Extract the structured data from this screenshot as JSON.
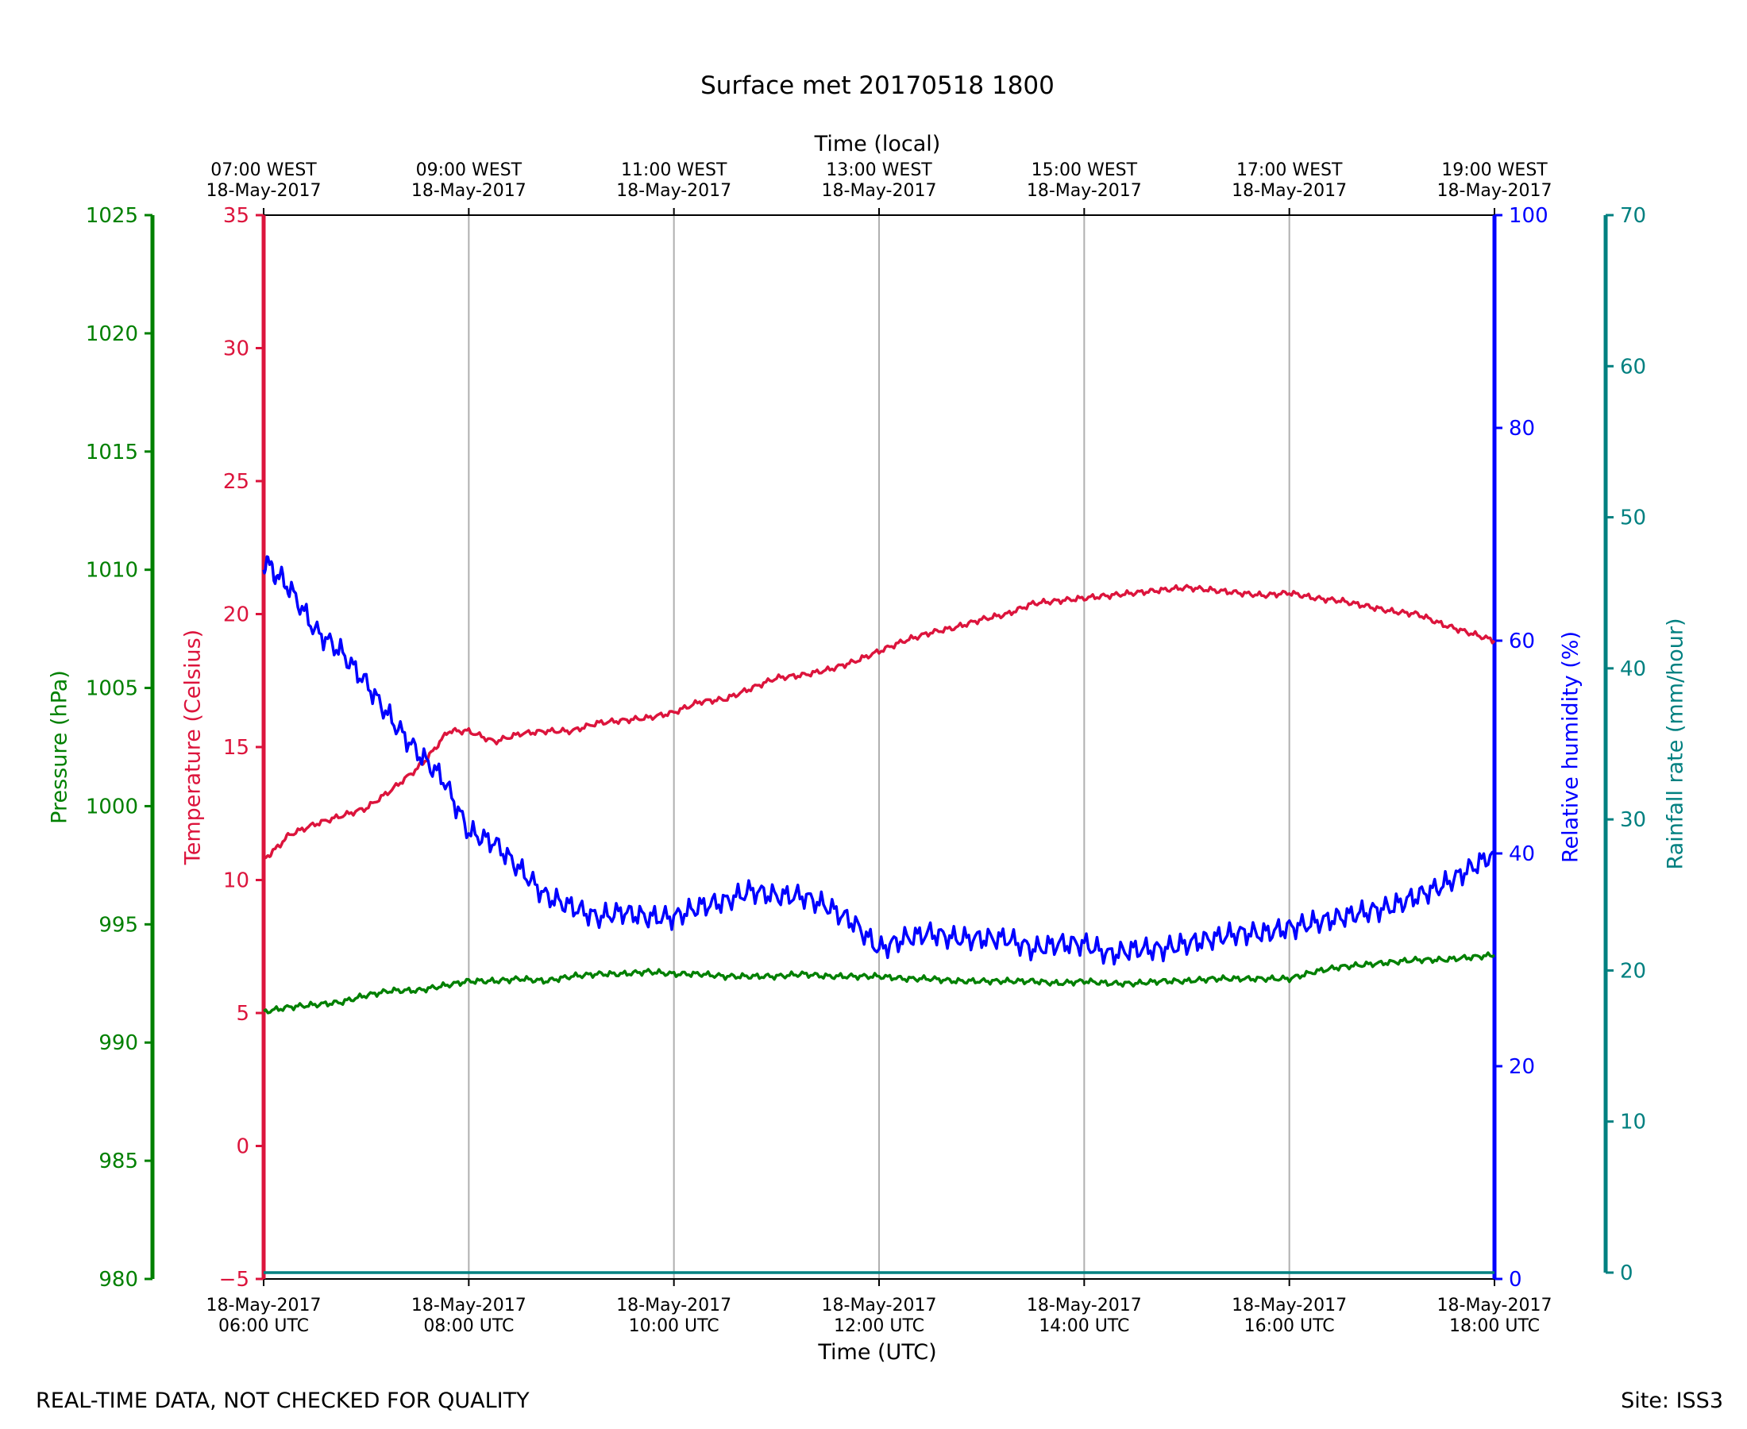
{
  "footer": {
    "left_note": "REAL-TIME DATA, NOT CHECKED FOR QUALITY",
    "right_note": "Site: ISS3"
  },
  "chart_data": {
    "type": "line",
    "title": "Surface met 20170518 1800",
    "xlabel_bottom": "Time (UTC)",
    "xlabel_top": "Time (local)",
    "x_range_hours_utc": [
      6,
      18
    ],
    "x_ticks_bottom": [
      {
        "hour": 6,
        "date": "18-May-2017",
        "time": "06:00 UTC"
      },
      {
        "hour": 8,
        "date": "18-May-2017",
        "time": "08:00 UTC"
      },
      {
        "hour": 10,
        "date": "18-May-2017",
        "time": "10:00 UTC"
      },
      {
        "hour": 12,
        "date": "18-May-2017",
        "time": "12:00 UTC"
      },
      {
        "hour": 14,
        "date": "18-May-2017",
        "time": "14:00 UTC"
      },
      {
        "hour": 16,
        "date": "18-May-2017",
        "time": "16:00 UTC"
      },
      {
        "hour": 18,
        "date": "18-May-2017",
        "time": "18:00 UTC"
      }
    ],
    "x_ticks_top": [
      {
        "hour": 6,
        "time": "07:00 WEST",
        "date": "18-May-2017"
      },
      {
        "hour": 8,
        "time": "09:00 WEST",
        "date": "18-May-2017"
      },
      {
        "hour": 10,
        "time": "11:00 WEST",
        "date": "18-May-2017"
      },
      {
        "hour": 12,
        "time": "13:00 WEST",
        "date": "18-May-2017"
      },
      {
        "hour": 14,
        "time": "15:00 WEST",
        "date": "18-May-2017"
      },
      {
        "hour": 16,
        "time": "17:00 WEST",
        "date": "18-May-2017"
      },
      {
        "hour": 18,
        "time": "19:00 WEST",
        "date": "18-May-2017"
      }
    ],
    "grid": "vertical",
    "axes": {
      "pressure": {
        "label": "Pressure (hPa)",
        "range": [
          980,
          1025
        ],
        "ticks": [
          980,
          985,
          990,
          995,
          1000,
          1005,
          1010,
          1015,
          1020,
          1025
        ],
        "color": "#008000"
      },
      "temperature": {
        "label": "Temperature (Celsius)",
        "range": [
          -5,
          35
        ],
        "ticks": [
          -5,
          0,
          5,
          10,
          15,
          20,
          25,
          30,
          35
        ],
        "tick_labels": [
          "−5",
          "0",
          "5",
          "10",
          "15",
          "20",
          "25",
          "30",
          "35"
        ],
        "color": "#dc143c"
      },
      "humidity": {
        "label": "Relative humidity (%)",
        "range": [
          0,
          100
        ],
        "ticks": [
          0,
          20,
          40,
          60,
          80,
          100
        ],
        "color": "#0000ff"
      },
      "rainfall": {
        "label": "Rainfall rate (mm/hour)",
        "range": [
          0,
          70
        ],
        "ticks": [
          0,
          10,
          20,
          30,
          40,
          50,
          60,
          70
        ],
        "color": "#008080"
      }
    },
    "series": [
      {
        "name": "Temperature",
        "axis": "temperature",
        "color": "#dc143c",
        "x": [
          6.0,
          6.1,
          6.25,
          6.5,
          6.75,
          7.0,
          7.25,
          7.5,
          7.6,
          7.8,
          8.0,
          8.25,
          8.5,
          8.75,
          9.0,
          9.25,
          9.5,
          9.75,
          10.0,
          10.25,
          10.5,
          10.75,
          11.0,
          11.25,
          11.5,
          11.75,
          12.0,
          12.25,
          12.5,
          12.75,
          13.0,
          13.25,
          13.5,
          13.75,
          14.0,
          14.25,
          14.5,
          14.75,
          15.0,
          15.25,
          15.5,
          15.75,
          16.0,
          16.25,
          16.5,
          16.75,
          17.0,
          17.25,
          17.5,
          17.75,
          18.0
        ],
        "values": [
          10.8,
          11.1,
          11.7,
          12.1,
          12.4,
          12.7,
          13.4,
          14.2,
          14.6,
          15.6,
          15.6,
          15.2,
          15.5,
          15.6,
          15.6,
          15.9,
          16.0,
          16.1,
          16.3,
          16.7,
          16.8,
          17.2,
          17.6,
          17.7,
          17.9,
          18.2,
          18.6,
          19.0,
          19.3,
          19.5,
          19.8,
          20.0,
          20.4,
          20.5,
          20.6,
          20.7,
          20.8,
          20.9,
          21.0,
          20.9,
          20.8,
          20.7,
          20.8,
          20.6,
          20.5,
          20.3,
          20.1,
          20.0,
          19.6,
          19.3,
          19.0
        ]
      },
      {
        "name": "Relative humidity",
        "axis": "humidity",
        "color": "#0000ff",
        "x": [
          6.0,
          6.1,
          6.25,
          6.5,
          6.75,
          7.0,
          7.25,
          7.5,
          7.75,
          8.0,
          8.25,
          8.5,
          8.75,
          9.0,
          9.25,
          9.5,
          9.75,
          10.0,
          10.25,
          10.5,
          10.75,
          11.0,
          11.25,
          11.5,
          11.75,
          12.0,
          12.25,
          12.5,
          12.75,
          13.0,
          13.25,
          13.5,
          13.75,
          14.0,
          14.25,
          14.5,
          14.75,
          15.0,
          15.25,
          15.5,
          15.75,
          16.0,
          16.25,
          16.5,
          16.75,
          17.0,
          17.25,
          17.5,
          17.75,
          18.0
        ],
        "values": [
          67.5,
          66.5,
          65.0,
          61.0,
          59.0,
          56.0,
          52.5,
          49.5,
          47.0,
          42.0,
          41.0,
          38.5,
          36.0,
          35.0,
          34.0,
          34.5,
          34.0,
          34.0,
          35.0,
          35.5,
          36.5,
          36.0,
          36.0,
          35.0,
          33.5,
          31.0,
          32.0,
          32.5,
          32.0,
          32.0,
          32.0,
          31.0,
          31.5,
          31.5,
          30.5,
          31.0,
          31.0,
          31.5,
          32.0,
          32.5,
          32.5,
          33.0,
          33.5,
          34.0,
          34.5,
          35.0,
          36.0,
          37.0,
          38.5,
          40.0
        ]
      },
      {
        "name": "Pressure",
        "axis": "pressure",
        "color": "#008000",
        "x": [
          6.0,
          6.25,
          6.5,
          6.75,
          7.0,
          7.25,
          7.5,
          7.75,
          8.0,
          8.25,
          8.5,
          8.75,
          9.0,
          9.25,
          9.5,
          9.75,
          10.0,
          10.25,
          10.5,
          10.75,
          11.0,
          11.25,
          11.5,
          11.75,
          12.0,
          12.25,
          12.5,
          12.75,
          13.0,
          13.25,
          13.5,
          13.75,
          14.0,
          14.25,
          14.5,
          14.75,
          15.0,
          15.25,
          15.5,
          15.75,
          16.0,
          16.25,
          16.5,
          16.75,
          17.0,
          17.25,
          17.5,
          17.75,
          18.0
        ],
        "values": [
          991.3,
          991.5,
          991.6,
          991.7,
          992.0,
          992.2,
          992.2,
          992.4,
          992.6,
          992.6,
          992.7,
          992.6,
          992.8,
          992.9,
          992.9,
          993.0,
          992.9,
          992.9,
          992.8,
          992.8,
          992.8,
          992.9,
          992.8,
          992.8,
          992.8,
          992.7,
          992.7,
          992.6,
          992.6,
          992.6,
          992.6,
          992.5,
          992.6,
          992.5,
          992.5,
          992.6,
          992.6,
          992.7,
          992.7,
          992.7,
          992.7,
          993.0,
          993.2,
          993.3,
          993.4,
          993.5,
          993.5,
          993.6,
          993.7
        ]
      },
      {
        "name": "Rainfall rate",
        "axis": "rainfall",
        "color": "#008080",
        "x": [
          6.0,
          18.0
        ],
        "values": [
          0.0,
          0.0
        ]
      }
    ]
  }
}
